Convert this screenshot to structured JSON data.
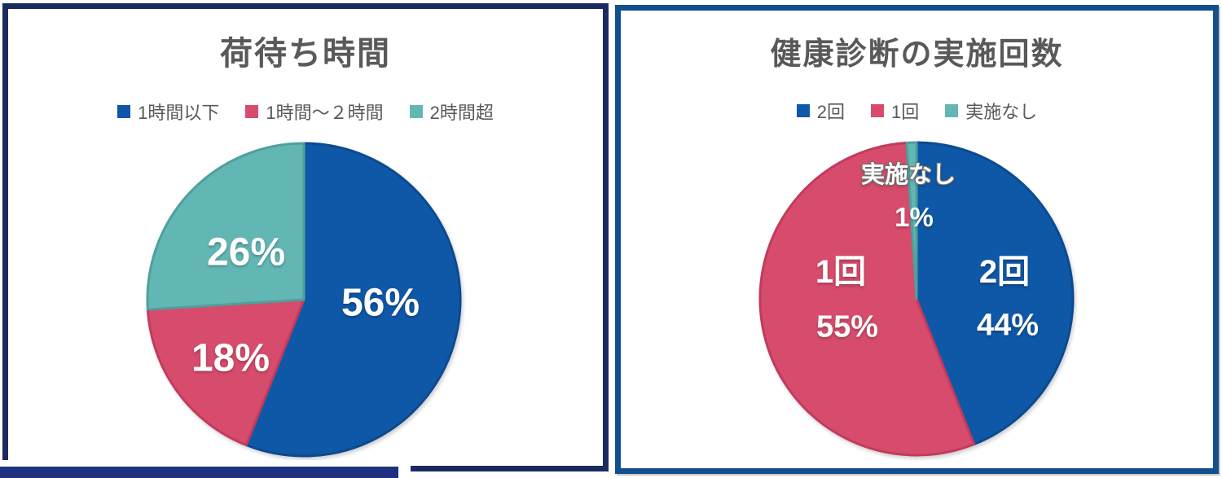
{
  "page": {
    "background": "#ffffff"
  },
  "panels": [
    {
      "name": "cargo-wait-time",
      "border_color": "#1C2B5F"
    },
    {
      "name": "health-checkup-count",
      "border_color": "#134F8C"
    }
  ],
  "decor": {
    "bottom_bar_color": "#1D3180",
    "bottom_bar_note": "solid navy bar overlapping bottom-left of left panel"
  },
  "chart_data": [
    {
      "type": "pie",
      "title": "荷待ち時間",
      "labels": [
        "1時間以下",
        "1時間～２時間",
        "2時間超"
      ],
      "values": [
        56,
        18,
        26
      ],
      "unit": "%",
      "data_labels": [
        "56%",
        "18%",
        "26%"
      ],
      "colors": [
        "#0F58A8",
        "#D74C6C",
        "#62B7B4"
      ],
      "stroke_colors": [
        "#0C4A8F",
        "#C23B5C",
        "#4FA09C"
      ],
      "start_angle_deg": 0,
      "direction": "clockwise",
      "legend_position": "top",
      "data_label_color": "#ffffff",
      "title_color": "#595959"
    },
    {
      "type": "pie",
      "title": "健康診断の実施回数",
      "labels": [
        "2回",
        "1回",
        "実施なし"
      ],
      "values": [
        44,
        55,
        1
      ],
      "unit": "%",
      "data_labels": [
        "44%",
        "55%",
        "1%"
      ],
      "colors": [
        "#0F58A8",
        "#D74C6C",
        "#62B7B4"
      ],
      "stroke_colors": [
        "#0C4A8F",
        "#C23B5C",
        "#4FA09C"
      ],
      "start_angle_deg": 0,
      "direction": "clockwise",
      "legend_position": "top",
      "data_label_color": "#ffffff",
      "title_color": "#595959"
    }
  ]
}
